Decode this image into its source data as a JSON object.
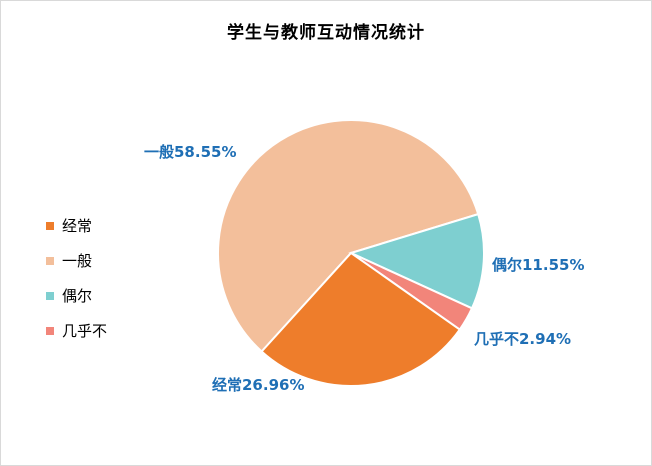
{
  "chart_data": {
    "type": "pie",
    "title": "学生与教师互动情况统计",
    "slices": [
      {
        "name": "经常",
        "value": 26.96,
        "label": "经常26.96%",
        "color": "#ee7d2b"
      },
      {
        "name": "一般",
        "value": 58.55,
        "label": "一般58.55%",
        "color": "#f3bf9b"
      },
      {
        "name": "偶尔",
        "value": 11.55,
        "label": "偶尔11.55%",
        "color": "#7ecfd0"
      },
      {
        "name": "几乎不",
        "value": 2.94,
        "label": "几乎不2.94%",
        "color": "#f2857a"
      }
    ],
    "legend_position": "left",
    "data_label_color": "#1f6fb5"
  }
}
